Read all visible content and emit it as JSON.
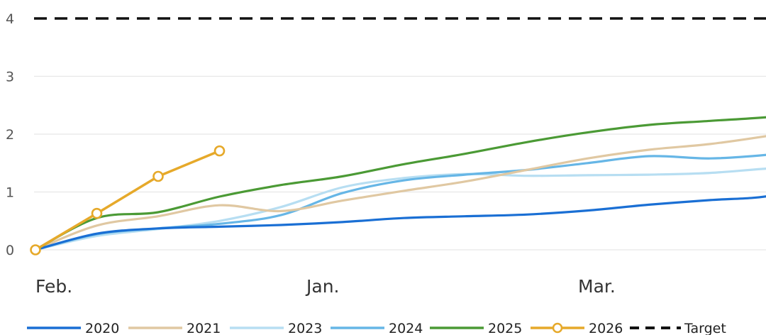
{
  "chart_data": {
    "type": "line",
    "title": "",
    "xlabel": "",
    "ylabel": "",
    "ylim": [
      0,
      4
    ],
    "yticks": [
      "0",
      "1",
      "2",
      "3",
      "4"
    ],
    "xticks": [
      "Feb.",
      "Jan.",
      "Mar."
    ],
    "grid": true,
    "legend_position": "bottom",
    "series": [
      {
        "name": "2020",
        "color": "#1a6fd4",
        "style": "solid",
        "points": [
          [
            0,
            0
          ],
          [
            1,
            0.28
          ],
          [
            2,
            0.37
          ],
          [
            3,
            0.4
          ],
          [
            4,
            0.43
          ],
          [
            5,
            0.48
          ],
          [
            6,
            0.55
          ],
          [
            7,
            0.58
          ],
          [
            8,
            0.61
          ],
          [
            9,
            0.68
          ],
          [
            10,
            0.78
          ],
          [
            11,
            0.86
          ],
          [
            12,
            0.94
          ],
          [
            13,
            1.25
          ]
        ]
      },
      {
        "name": "2021",
        "color": "#e0c8a2",
        "style": "solid",
        "points": [
          [
            0,
            0
          ],
          [
            1,
            0.42
          ],
          [
            2,
            0.58
          ],
          [
            3,
            0.77
          ],
          [
            4,
            0.67
          ],
          [
            5,
            0.85
          ],
          [
            6,
            1.02
          ],
          [
            7,
            1.18
          ],
          [
            8,
            1.38
          ],
          [
            9,
            1.58
          ],
          [
            10,
            1.73
          ],
          [
            11,
            1.83
          ],
          [
            12,
            1.98
          ],
          [
            13,
            2.15
          ]
        ]
      },
      {
        "name": "2023",
        "color": "#b7def2",
        "style": "solid",
        "points": [
          [
            0,
            0
          ],
          [
            1,
            0.24
          ],
          [
            2,
            0.36
          ],
          [
            3,
            0.5
          ],
          [
            4,
            0.74
          ],
          [
            5,
            1.08
          ],
          [
            6,
            1.24
          ],
          [
            7,
            1.31
          ],
          [
            8,
            1.28
          ],
          [
            9,
            1.29
          ],
          [
            10,
            1.3
          ],
          [
            11,
            1.33
          ],
          [
            12,
            1.41
          ],
          [
            13,
            1.45
          ]
        ]
      },
      {
        "name": "2024",
        "color": "#66b6e6",
        "style": "solid",
        "points": [
          [
            0,
            0
          ],
          [
            1,
            0.27
          ],
          [
            2,
            0.37
          ],
          [
            3,
            0.45
          ],
          [
            4,
            0.6
          ],
          [
            5,
            0.98
          ],
          [
            6,
            1.2
          ],
          [
            7,
            1.3
          ],
          [
            8,
            1.38
          ],
          [
            9,
            1.5
          ],
          [
            10,
            1.62
          ],
          [
            11,
            1.58
          ],
          [
            12,
            1.65
          ],
          [
            13,
            1.78
          ]
        ]
      },
      {
        "name": "2025",
        "color": "#4b9a35",
        "style": "solid",
        "points": [
          [
            0,
            0
          ],
          [
            1,
            0.55
          ],
          [
            2,
            0.65
          ],
          [
            3,
            0.92
          ],
          [
            4,
            1.12
          ],
          [
            5,
            1.27
          ],
          [
            6,
            1.48
          ],
          [
            7,
            1.66
          ],
          [
            8,
            1.86
          ],
          [
            9,
            2.03
          ],
          [
            10,
            2.16
          ],
          [
            11,
            2.23
          ],
          [
            12,
            2.3
          ],
          [
            13,
            2.42
          ]
        ]
      },
      {
        "name": "2026",
        "color": "#e6a92a",
        "style": "solid-markers",
        "points": [
          [
            0,
            0
          ],
          [
            1,
            0.63
          ],
          [
            2,
            1.27
          ],
          [
            3,
            1.71
          ]
        ]
      },
      {
        "name": "Target",
        "color": "#111111",
        "style": "dashed",
        "points": [
          [
            0,
            4
          ],
          [
            13,
            4
          ]
        ]
      }
    ]
  }
}
